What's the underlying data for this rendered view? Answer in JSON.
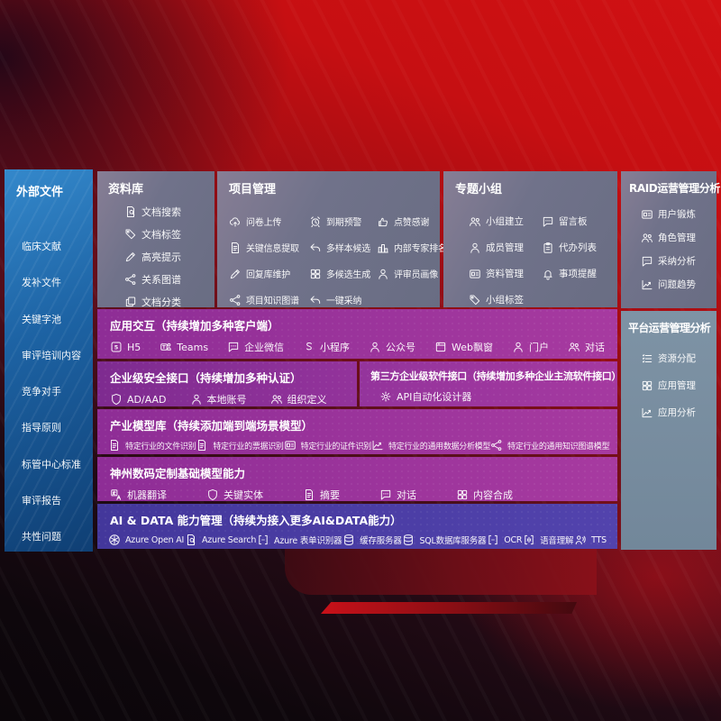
{
  "theme": {
    "background_red": "#c60f12",
    "sidebar_blue": "#1d63a4",
    "panel_gray": "#70728a",
    "panel_steel_blue": "#788c9f",
    "band_purple": "#9a329b",
    "band_indigo": "#4a3ca3",
    "text_color": "#ffffff"
  },
  "left_sidebar": {
    "title": "外部文件",
    "items": [
      "临床文献",
      "发补文件",
      "关键字池",
      "审评培训内容",
      "竞争对手",
      "指导原则",
      "标管中心标准",
      "审评报告",
      "共性问题"
    ]
  },
  "panels": {
    "data_library": {
      "title": "资料库",
      "items": [
        {
          "icon": "doc-search",
          "label": "文档搜索"
        },
        {
          "icon": "tag",
          "label": "文档标签"
        },
        {
          "icon": "highlight-pencil",
          "label": "高亮提示"
        },
        {
          "icon": "relation-graph",
          "label": "关系图谱"
        },
        {
          "icon": "doc-copy",
          "label": "文档分类"
        }
      ]
    },
    "project_mgmt": {
      "title": "项目管理",
      "items": [
        {
          "icon": "cloud-upload",
          "label": "问卷上传"
        },
        {
          "icon": "alarm",
          "label": "到期预警"
        },
        {
          "icon": "thumbs-up",
          "label": "点赞感谢"
        },
        {
          "icon": "doc-extract",
          "label": "关键信息提取"
        },
        {
          "icon": "reply-arrow",
          "label": "多样本候选"
        },
        {
          "icon": "ranking-podium",
          "label": "内部专家排名"
        },
        {
          "icon": "pencil",
          "label": "回复库维护"
        },
        {
          "icon": "grid-generate",
          "label": "多候选生成"
        },
        {
          "icon": "person",
          "label": "评审员画像"
        },
        {
          "icon": "knowledge-graph",
          "label": "项目知识图谱"
        },
        {
          "icon": "adopt-arrow",
          "label": "一键采纳"
        }
      ]
    },
    "topic_groups": {
      "title": "专题小组",
      "items": [
        {
          "icon": "users",
          "label": "小组建立"
        },
        {
          "icon": "bbs-bubble",
          "label": "留言板"
        },
        {
          "icon": "person-add",
          "label": "成员管理"
        },
        {
          "icon": "clipboard",
          "label": "代办列表"
        },
        {
          "icon": "album",
          "label": "资料管理"
        },
        {
          "icon": "bell",
          "label": "事项提醒"
        },
        {
          "icon": "tag",
          "label": "小组标签"
        }
      ]
    },
    "raid_analysis": {
      "title": "RAID运营管理分析",
      "items": [
        {
          "icon": "id-card",
          "label": "用户锻炼"
        },
        {
          "icon": "users",
          "label": "角色管理"
        },
        {
          "icon": "chat-qa",
          "label": "采纳分析"
        },
        {
          "icon": "trend-chart",
          "label": "问题趋势"
        }
      ]
    },
    "platform_analysis": {
      "title": "平台运营管理分析",
      "items": [
        {
          "icon": "resource-list",
          "label": "资源分配"
        },
        {
          "icon": "app-grid",
          "label": "应用管理"
        },
        {
          "icon": "app-chart",
          "label": "应用分析"
        }
      ]
    }
  },
  "bands": {
    "interaction": {
      "title": "应用交互（持续增加多种客户端）",
      "items": [
        {
          "icon": "h5",
          "label": "H5"
        },
        {
          "icon": "teams",
          "label": "Teams"
        },
        {
          "icon": "wechat-work",
          "label": "企业微信"
        },
        {
          "icon": "mini-program",
          "label": "小程序"
        },
        {
          "icon": "official-account",
          "label": "公众号"
        },
        {
          "icon": "web-window",
          "label": "Web飘窗"
        },
        {
          "icon": "portal",
          "label": "门户"
        },
        {
          "icon": "dialog",
          "label": "对话"
        }
      ]
    },
    "security": {
      "title": "企业级安全接口（持续增加多种认证）",
      "items": [
        {
          "icon": "ad-shield",
          "label": "AD/AAD"
        },
        {
          "icon": "local-account",
          "label": "本地账号"
        },
        {
          "icon": "org-define",
          "label": "组织定义"
        }
      ]
    },
    "third_party": {
      "title": "第三方企业级软件接口（持续增加多种企业主流软件接口）",
      "items": [
        {
          "icon": "api-gear",
          "label": "API自动化设计器"
        }
      ]
    },
    "industry_models": {
      "title": "产业模型库（持续添加端到端场景模型）",
      "items": [
        {
          "icon": "doc-recognize",
          "label": "特定行业的文件识别"
        },
        {
          "icon": "receipt",
          "label": "特定行业的票据识别"
        },
        {
          "icon": "id-card",
          "label": "特定行业的证件识别"
        },
        {
          "icon": "data-model",
          "label": "特定行业的通用数据分析模型"
        },
        {
          "icon": "knowledge-graph",
          "label": "特定行业的通用知识图谱模型"
        }
      ]
    },
    "base_models": {
      "title": "神州数码定制基础模型能力",
      "items": [
        {
          "icon": "translate",
          "label": "机器翻译"
        },
        {
          "icon": "entity-shield",
          "label": "关键实体"
        },
        {
          "icon": "summary-doc",
          "label": "摘要"
        },
        {
          "icon": "chat",
          "label": "对话"
        },
        {
          "icon": "compose-grid",
          "label": "内容合成"
        }
      ]
    },
    "ai_data": {
      "title": "AI & DATA 能力管理（持续为接入更多AI&DATA能力）",
      "items": [
        {
          "icon": "openai",
          "label": "Azure Open AI"
        },
        {
          "icon": "azure-search",
          "label": "Azure Search"
        },
        {
          "icon": "form-recognizer",
          "label": "Azure 表单识别器"
        },
        {
          "icon": "cache-server",
          "label": "缓存服务器"
        },
        {
          "icon": "sql-db",
          "label": "SQL数据库服务器"
        },
        {
          "icon": "ocr",
          "label": "OCR"
        },
        {
          "icon": "speech",
          "label": "语音理解"
        },
        {
          "icon": "tts",
          "label": "TTS"
        }
      ]
    }
  }
}
